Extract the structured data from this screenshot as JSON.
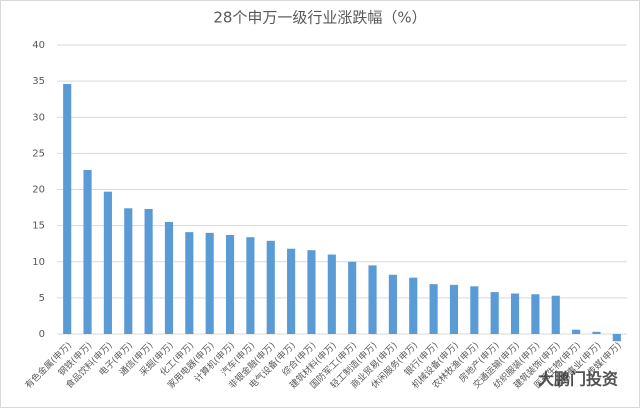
{
  "chart_data": {
    "type": "bar",
    "title": "28个申万一级行业涨跌幅（%）",
    "categories": [
      "有色金属(申万)",
      "钢铁(申万)",
      "食品饮料(申万)",
      "电子(申万)",
      "通信(申万)",
      "采掘(申万)",
      "化工(申万)",
      "家用电器(申万)",
      "计算机(申万)",
      "汽车(申万)",
      "非银金融(申万)",
      "电气设备(申万)",
      "综合(申万)",
      "建筑材料(申万)",
      "国防军工(申万)",
      "轻工制造(申万)",
      "商业贸易(申万)",
      "休闲服务(申万)",
      "银行(申万)",
      "机械设备(申万)",
      "农林牧渔(申万)",
      "房地产(申万)",
      "交通运输(申万)",
      "纺织服装(申万)",
      "建筑装饰(申万)",
      "医药生物(申万)",
      "公用事业(申万)",
      "传媒(申万)"
    ],
    "values": [
      34.6,
      22.7,
      19.7,
      17.4,
      17.3,
      15.5,
      14.1,
      14.0,
      13.7,
      13.4,
      12.9,
      11.8,
      11.6,
      11.0,
      10.0,
      9.5,
      8.2,
      7.8,
      6.9,
      6.8,
      6.6,
      5.8,
      5.6,
      5.5,
      5.3,
      0.6,
      0.3,
      -1.0
    ],
    "color": "#5b9bd5",
    "ylim": [
      0,
      40
    ],
    "yticks": [
      0,
      5,
      10,
      15,
      20,
      25,
      30,
      35,
      40
    ],
    "grid": true,
    "watermark": "大鹏门投资"
  }
}
